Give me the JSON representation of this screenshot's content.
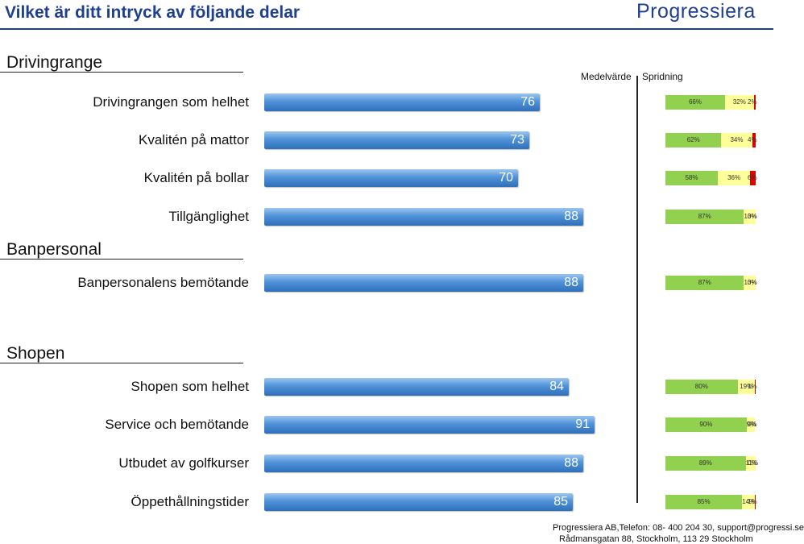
{
  "header": {
    "title": "Vilket är ditt intryck av följande delar",
    "logo": "Progressiera",
    "col_mean": "Medelvärde",
    "col_spread": "Spridning"
  },
  "sections": {
    "drivingrange": "Drivingrange",
    "banpersonal": "Banpersonal",
    "shopen": "Shopen"
  },
  "colors": {
    "accent": "#1f3f8f",
    "bar": "#3d7fc8",
    "positive": "#92d050",
    "neutral": "#ffff99",
    "negative": "#e00000"
  },
  "chart_data": {
    "type": "bar",
    "orientation": "horizontal",
    "title": "Vilket är ditt intryck av följande delar",
    "categories": [
      "Drivingrangen som helhet",
      "Kvalitén på mattor",
      "Kvalitén på bollar",
      "Tillgänglighet",
      "Banpersonalens bemötande",
      "Shopen som helhet",
      "Service och bemötande",
      "Utbudet av golfkurser",
      "Öppethållningstider"
    ],
    "series": [
      {
        "name": "Medelvärde",
        "values": [
          76,
          73,
          70,
          88,
          88,
          84,
          91,
          88,
          85
        ]
      }
    ],
    "value_labels": [
      "76",
      "73",
      "70",
      "88",
      "88",
      "84",
      "91",
      "88",
      "85"
    ],
    "xlim": [
      0,
      100
    ],
    "spread": [
      [
        "66%",
        "32%",
        "2%"
      ],
      [
        "62%",
        "34%",
        "4%"
      ],
      [
        "58%",
        "36%",
        "6%"
      ],
      [
        "87%",
        "13%",
        "0%"
      ],
      [
        "87%",
        "13%",
        "0%"
      ],
      [
        "80%",
        "19%",
        "1%"
      ],
      [
        "90%",
        "9%",
        "0%"
      ],
      [
        "89%",
        "11%",
        "0%"
      ],
      [
        "85%",
        "14%",
        "1%"
      ]
    ],
    "spread_values": [
      [
        66,
        32,
        2
      ],
      [
        62,
        34,
        4
      ],
      [
        58,
        36,
        6
      ],
      [
        87,
        13,
        0
      ],
      [
        87,
        13,
        0
      ],
      [
        80,
        19,
        1
      ],
      [
        90,
        9,
        0
      ],
      [
        89,
        11,
        0
      ],
      [
        85,
        14,
        1
      ]
    ]
  },
  "footer": {
    "line1": "Progressiera AB,Telefon: 08-  400 204 30, support@progressi.se",
    "line2": "Rådmansgatan 88, Stockholm, 113 29 Stockholm"
  }
}
